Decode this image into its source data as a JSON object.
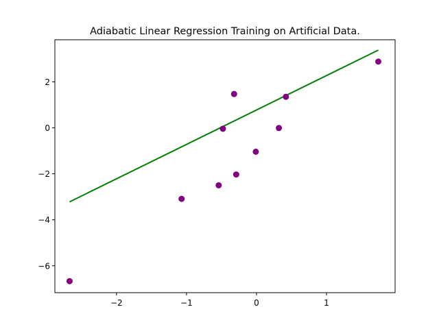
{
  "chart_data": {
    "type": "scatter",
    "title": "Adiabatic Linear Regression Training on Artificial Data.",
    "xlabel": "",
    "ylabel": "",
    "xlim": [
      -2.88,
      1.98
    ],
    "ylim": [
      -7.17,
      3.83
    ],
    "x_ticks": [
      -2,
      -1,
      0,
      1
    ],
    "x_tick_labels": [
      "−2",
      "−1",
      "0",
      "1"
    ],
    "y_ticks": [
      -6,
      -4,
      -2,
      0,
      2
    ],
    "y_tick_labels": [
      "−6",
      "−4",
      "−2",
      "0",
      "2"
    ],
    "grid": false,
    "legend": "none",
    "series": [
      {
        "type": "scatter",
        "color": "#800080",
        "points": [
          {
            "x": -2.67,
            "y": -6.67
          },
          {
            "x": -1.07,
            "y": -3.09
          },
          {
            "x": -0.54,
            "y": -2.5
          },
          {
            "x": -0.48,
            "y": -0.04
          },
          {
            "x": -0.32,
            "y": 1.47
          },
          {
            "x": -0.29,
            "y": -2.03
          },
          {
            "x": -0.01,
            "y": -1.04
          },
          {
            "x": 0.32,
            "y": -0.01
          },
          {
            "x": 0.42,
            "y": 1.35
          },
          {
            "x": 1.74,
            "y": 2.88
          }
        ]
      },
      {
        "type": "line",
        "color": "#008000",
        "points": [
          {
            "x": -2.67,
            "y": -3.22
          },
          {
            "x": 1.74,
            "y": 3.38
          }
        ]
      }
    ]
  }
}
